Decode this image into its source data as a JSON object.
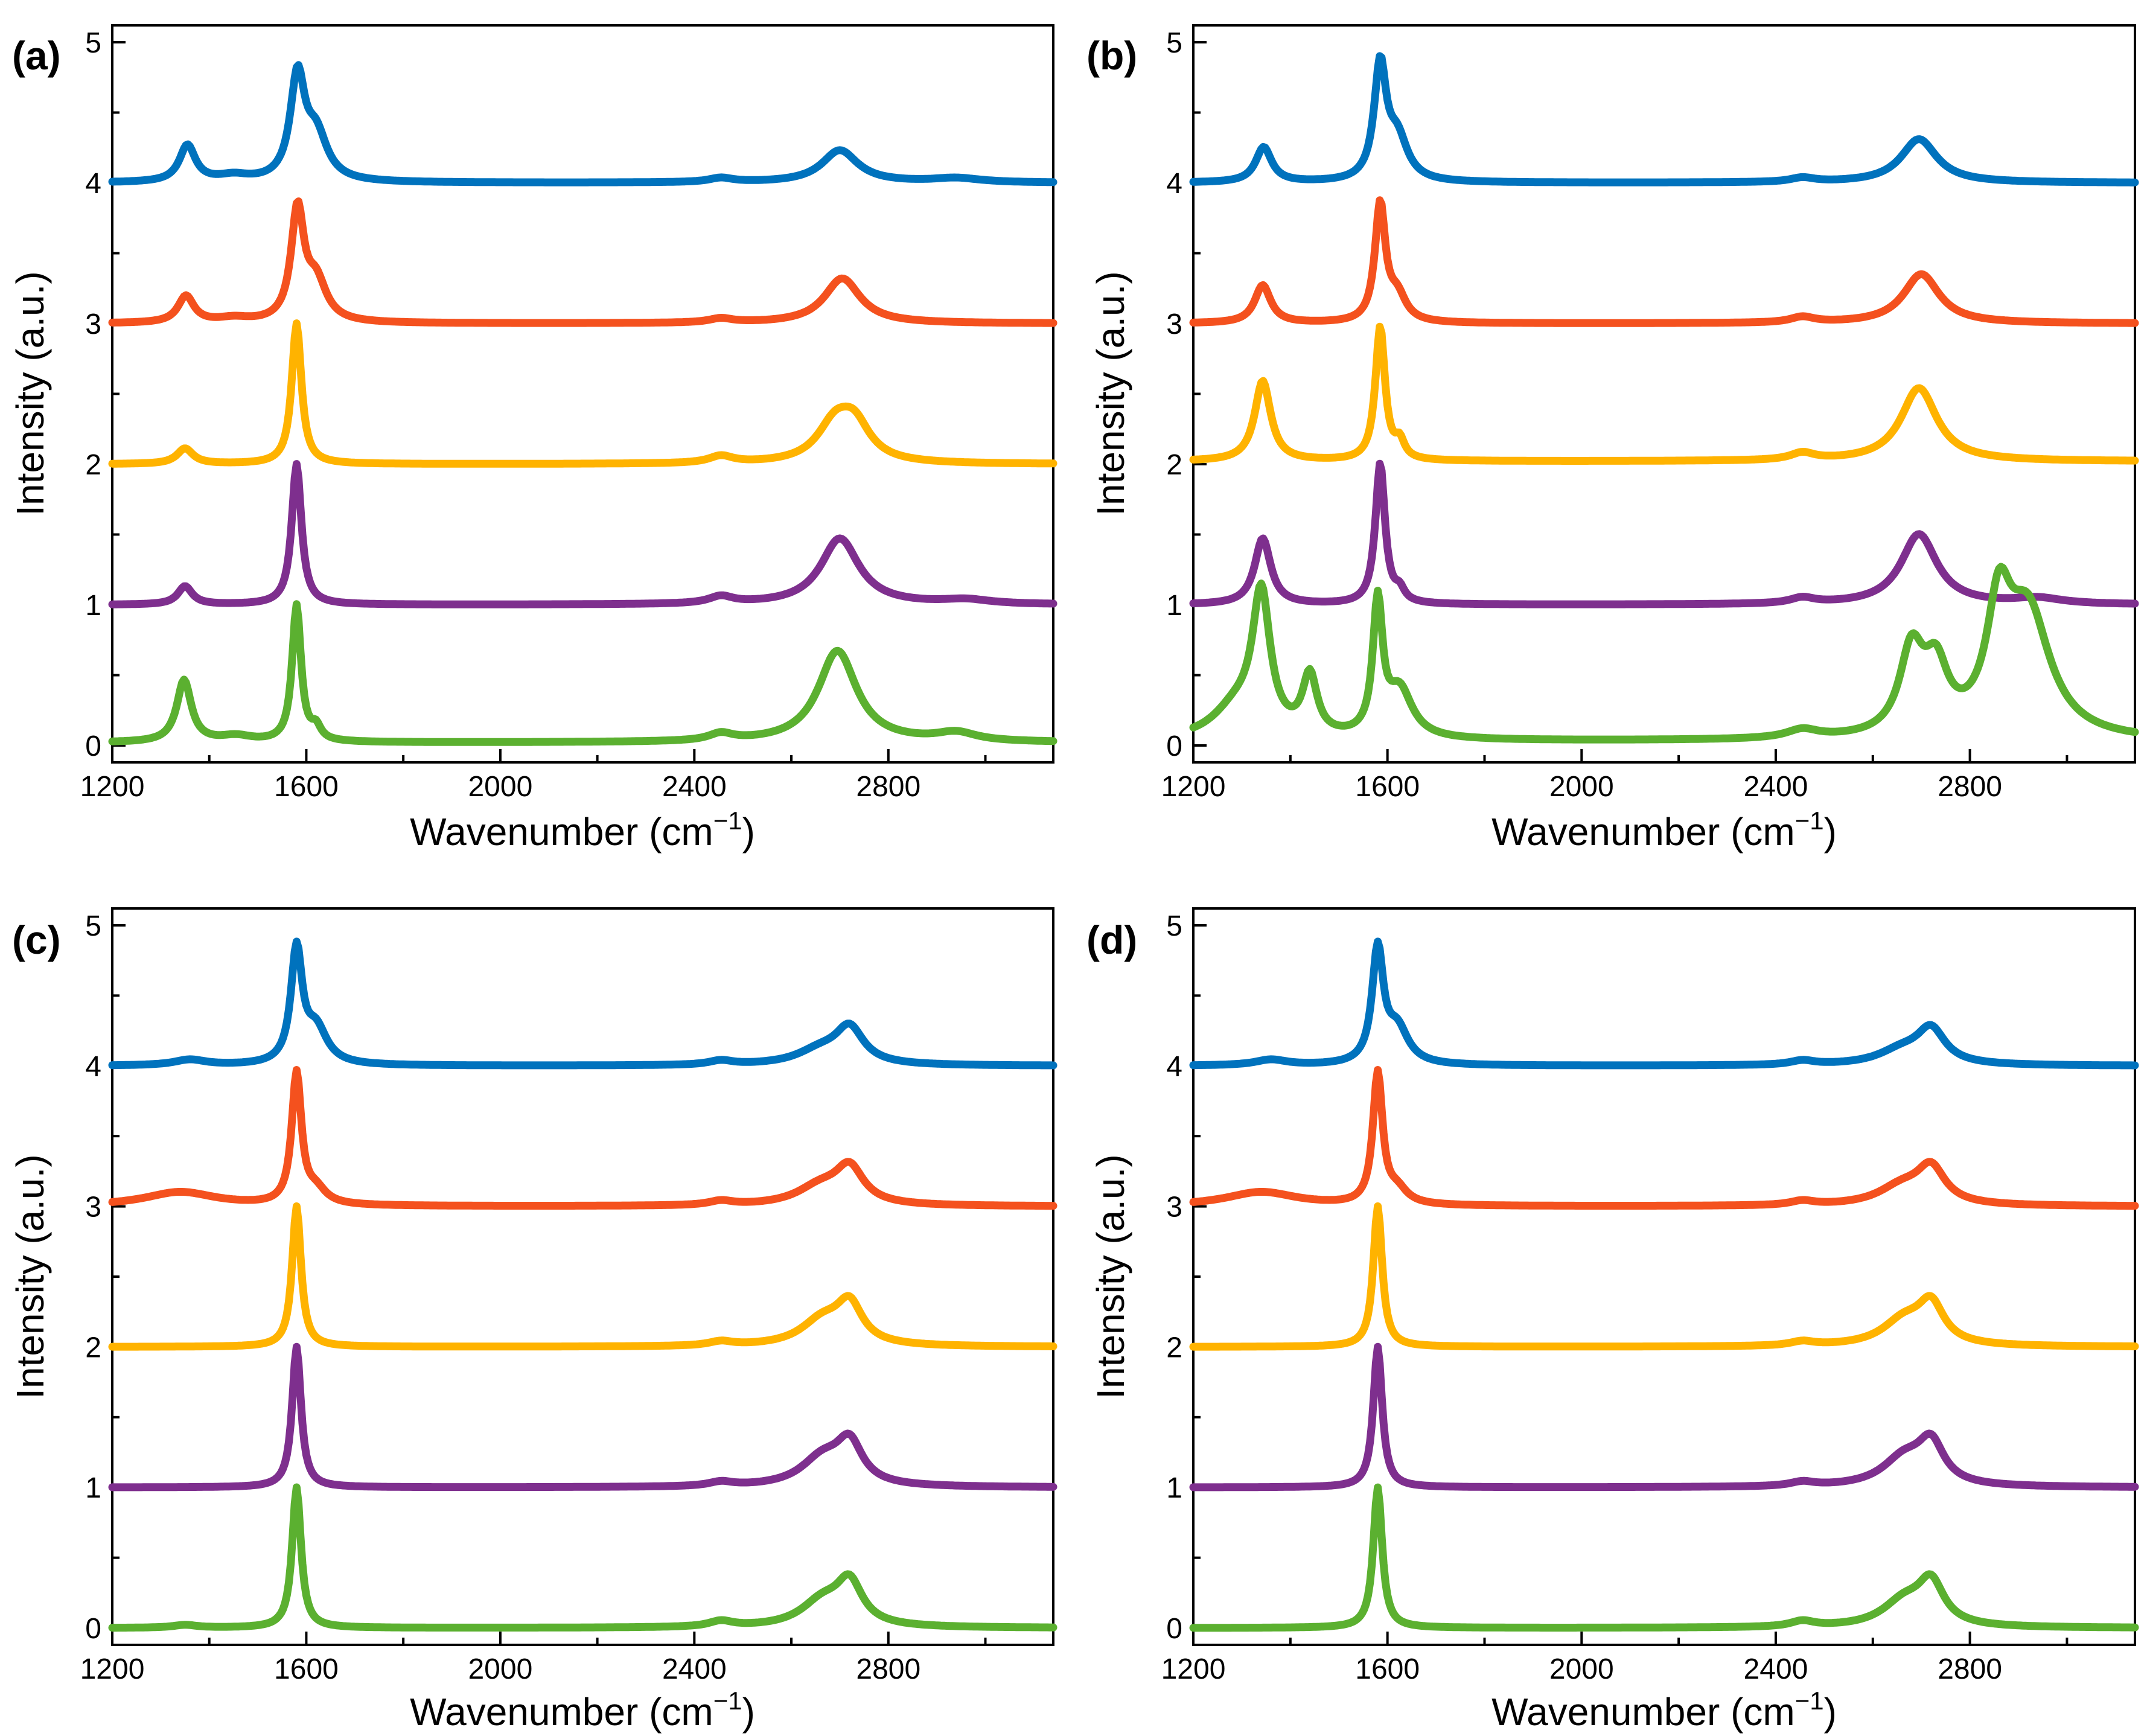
{
  "colors": {
    "blue": "#0072BD",
    "orange": "#F4511E",
    "yellow": "#FFB300",
    "purple": "#7E2F8E",
    "green": "#5BB030"
  },
  "chart_data": [
    {
      "type": "line",
      "panel_label": "(a)",
      "xlabel": "Wavenumber (cm",
      "xlabel_sup": "−1",
      "xlabel_close": ")",
      "ylabel": "Intensity (a.u.)",
      "xlim": [
        1200,
        3140
      ],
      "ylim": [
        -0.12,
        5.12
      ],
      "xticks": [
        "1200",
        "1600",
        "2000",
        "2400",
        "2800"
      ],
      "yticks": [
        "0",
        "1",
        "2",
        "3",
        "4",
        "5"
      ],
      "grid": false,
      "series": [
        {
          "color": "blue",
          "offset": 4,
          "peaks": [
            [
              1355,
              0.26,
              20
            ],
            [
              1450,
              0.04,
              40
            ],
            [
              1582,
              0.72,
              18
            ],
            [
              1620,
              0.32,
              28
            ],
            [
              2455,
              0.03,
              30
            ],
            [
              2700,
              0.23,
              45
            ],
            [
              2940,
              0.03,
              60
            ]
          ]
        },
        {
          "color": "orange",
          "offset": 3,
          "peaks": [
            [
              1352,
              0.19,
              20
            ],
            [
              1450,
              0.03,
              40
            ],
            [
              1582,
              0.78,
              16
            ],
            [
              1620,
              0.28,
              26
            ],
            [
              2455,
              0.03,
              30
            ],
            [
              2705,
              0.32,
              45
            ]
          ]
        },
        {
          "color": "yellow",
          "offset": 2,
          "peaks": [
            [
              1350,
              0.11,
              20
            ],
            [
              1580,
              1.0,
              12
            ],
            [
              2455,
              0.05,
              30
            ],
            [
              2690,
              0.26,
              45
            ],
            [
              2730,
              0.24,
              40
            ]
          ]
        },
        {
          "color": "purple",
          "offset": 1,
          "peaks": [
            [
              1350,
              0.13,
              18
            ],
            [
              1580,
              1.0,
              12
            ],
            [
              2455,
              0.05,
              30
            ],
            [
              2700,
              0.47,
              48
            ],
            [
              2960,
              0.03,
              60
            ]
          ]
        },
        {
          "color": "green",
          "offset": 0.02,
          "peaks": [
            [
              1348,
              0.44,
              18
            ],
            [
              1455,
              0.04,
              40
            ],
            [
              1580,
              0.97,
              11
            ],
            [
              1620,
              0.09,
              12
            ],
            [
              2455,
              0.05,
              30
            ],
            [
              2695,
              0.65,
              48
            ],
            [
              2940,
              0.06,
              50
            ]
          ]
        }
      ]
    },
    {
      "type": "line",
      "panel_label": "(b)",
      "xlabel": "Wavenumber (cm",
      "xlabel_sup": "−1",
      "xlabel_close": ")",
      "ylabel": "Intensity (a.u.)",
      "xlim": [
        1200,
        3140
      ],
      "ylim": [
        -0.12,
        5.12
      ],
      "xticks": [
        "1200",
        "1600",
        "2000",
        "2400",
        "2800"
      ],
      "yticks": [
        "0",
        "1",
        "2",
        "3",
        "4",
        "5"
      ],
      "grid": false,
      "series": [
        {
          "color": "blue",
          "offset": 4,
          "peaks": [
            [
              1345,
              0.25,
              20
            ],
            [
              1585,
              0.8,
              15
            ],
            [
              1620,
              0.3,
              26
            ],
            [
              2455,
              0.03,
              30
            ],
            [
              2695,
              0.31,
              45
            ]
          ]
        },
        {
          "color": "orange",
          "offset": 3,
          "peaks": [
            [
              1343,
              0.27,
              20
            ],
            [
              1585,
              0.83,
              13
            ],
            [
              1620,
              0.18,
              22
            ],
            [
              2455,
              0.04,
              30
            ],
            [
              2700,
              0.35,
              45
            ]
          ]
        },
        {
          "color": "yellow",
          "offset": 2.02,
          "peaks": [
            [
              1343,
              0.57,
              20
            ],
            [
              1585,
              0.95,
              12
            ],
            [
              1625,
              0.12,
              12
            ],
            [
              2455,
              0.05,
              30
            ],
            [
              2695,
              0.52,
              45
            ]
          ]
        },
        {
          "color": "purple",
          "offset": 1,
          "peaks": [
            [
              1343,
              0.47,
              20
            ],
            [
              1585,
              1.0,
              12
            ],
            [
              1625,
              0.08,
              12
            ],
            [
              2455,
              0.04,
              30
            ],
            [
              2695,
              0.5,
              45
            ],
            [
              2940,
              0.04,
              60
            ]
          ]
        },
        {
          "color": "green",
          "offset": 0.03,
          "peaks": [
            [
              1290,
              0.22,
              60
            ],
            [
              1340,
              0.97,
              22
            ],
            [
              1440,
              0.42,
              18
            ],
            [
              1580,
              0.93,
              12
            ],
            [
              1625,
              0.34,
              32
            ],
            [
              2455,
              0.06,
              40
            ],
            [
              2680,
              0.58,
              30
            ],
            [
              2730,
              0.43,
              30
            ],
            [
              2860,
              0.79,
              30
            ],
            [
              2920,
              0.87,
              55
            ]
          ]
        }
      ]
    },
    {
      "type": "line",
      "panel_label": "(c)",
      "xlabel": "Wavenumber (cm",
      "xlabel_sup": "−1",
      "xlabel_close": ")",
      "ylabel": "Intensity (a.u.)",
      "xlim": [
        1200,
        3140
      ],
      "ylim": [
        -0.12,
        5.12
      ],
      "xticks": [
        "1200",
        "1600",
        "2000",
        "2400",
        "2800"
      ],
      "yticks": [
        "0",
        "1",
        "2",
        "3",
        "4",
        "5"
      ],
      "grid": false,
      "series": [
        {
          "color": "blue",
          "offset": 4,
          "peaks": [
            [
              1360,
              0.04,
              40
            ],
            [
              1580,
              0.8,
              14
            ],
            [
              1620,
              0.25,
              28
            ],
            [
              2455,
              0.03,
              30
            ],
            [
              2660,
              0.1,
              60
            ],
            [
              2720,
              0.25,
              35
            ]
          ]
        },
        {
          "color": "orange",
          "offset": 3,
          "peaks": [
            [
              1340,
              0.1,
              90
            ],
            [
              1580,
              0.93,
              12
            ],
            [
              1620,
              0.1,
              25
            ],
            [
              2455,
              0.03,
              30
            ],
            [
              2660,
              0.13,
              60
            ],
            [
              2720,
              0.25,
              35
            ]
          ]
        },
        {
          "color": "yellow",
          "offset": 2,
          "peaks": [
            [
              1580,
              1.0,
              11
            ],
            [
              2455,
              0.03,
              30
            ],
            [
              2665,
              0.18,
              55
            ],
            [
              2720,
              0.27,
              32
            ]
          ]
        },
        {
          "color": "purple",
          "offset": 1,
          "peaks": [
            [
              1580,
              1.0,
              11
            ],
            [
              2455,
              0.03,
              30
            ],
            [
              2665,
              0.2,
              55
            ],
            [
              2720,
              0.28,
              32
            ]
          ]
        },
        {
          "color": "green",
          "offset": 0,
          "peaks": [
            [
              1350,
              0.02,
              30
            ],
            [
              1580,
              1.0,
              11
            ],
            [
              2455,
              0.04,
              30
            ],
            [
              2665,
              0.18,
              55
            ],
            [
              2720,
              0.29,
              32
            ]
          ]
        }
      ]
    },
    {
      "type": "line",
      "panel_label": "(d)",
      "xlabel": "Wavenumber (cm",
      "xlabel_sup": "−1",
      "xlabel_close": ")",
      "ylabel": "Intensity (a.u.)",
      "xlim": [
        1200,
        3140
      ],
      "ylim": [
        -0.12,
        5.12
      ],
      "xticks": [
        "1200",
        "1600",
        "2000",
        "2400",
        "2800"
      ],
      "yticks": [
        "0",
        "1",
        "2",
        "3",
        "4",
        "5"
      ],
      "grid": false,
      "series": [
        {
          "color": "blue",
          "offset": 4,
          "peaks": [
            [
              1360,
              0.04,
              40
            ],
            [
              1580,
              0.8,
              14
            ],
            [
              1620,
              0.25,
              28
            ],
            [
              2455,
              0.03,
              30
            ],
            [
              2660,
              0.1,
              60
            ],
            [
              2720,
              0.24,
              35
            ]
          ]
        },
        {
          "color": "orange",
          "offset": 3,
          "peaks": [
            [
              1340,
              0.1,
              90
            ],
            [
              1580,
              0.93,
              12
            ],
            [
              1620,
              0.1,
              25
            ],
            [
              2455,
              0.03,
              30
            ],
            [
              2660,
              0.13,
              60
            ],
            [
              2720,
              0.25,
              35
            ]
          ]
        },
        {
          "color": "yellow",
          "offset": 2,
          "peaks": [
            [
              1580,
              1.0,
              11
            ],
            [
              2455,
              0.03,
              30
            ],
            [
              2665,
              0.18,
              55
            ],
            [
              2720,
              0.27,
              32
            ]
          ]
        },
        {
          "color": "purple",
          "offset": 1,
          "peaks": [
            [
              1580,
              1.0,
              11
            ],
            [
              2455,
              0.03,
              30
            ],
            [
              2665,
              0.2,
              55
            ],
            [
              2720,
              0.28,
              32
            ]
          ]
        },
        {
          "color": "green",
          "offset": 0,
          "peaks": [
            [
              1580,
              1.0,
              11
            ],
            [
              2455,
              0.04,
              30
            ],
            [
              2665,
              0.18,
              55
            ],
            [
              2720,
              0.29,
              32
            ]
          ]
        }
      ]
    }
  ]
}
